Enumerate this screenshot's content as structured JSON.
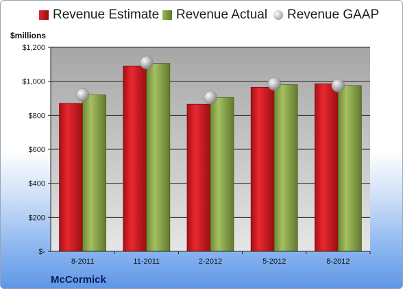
{
  "chart_data": {
    "type": "bar",
    "categories": [
      "8-2011",
      "11-2011",
      "2-2012",
      "5-2012",
      "8-2012"
    ],
    "series": [
      {
        "name": "Revenue Estimate",
        "values": [
          870,
          1090,
          865,
          965,
          985
        ],
        "color": "#c8191f"
      },
      {
        "name": "Revenue Actual",
        "values": [
          920,
          1105,
          905,
          980,
          975
        ],
        "color": "#8aa34a"
      }
    ],
    "markers": {
      "name": "Revenue GAAP",
      "values": [
        920,
        1110,
        905,
        985,
        975
      ],
      "color": "#b8b8b8"
    },
    "ylabel": "$millions",
    "ylim": [
      0,
      1200
    ],
    "yticks": [
      0,
      200,
      400,
      600,
      800,
      1000,
      1200
    ],
    "ytick_labels": [
      "$-",
      "$200",
      "$400",
      "$600",
      "$800",
      "$1,000",
      "$1,200"
    ],
    "grid": true,
    "legend": "top"
  },
  "company": "McCormick"
}
